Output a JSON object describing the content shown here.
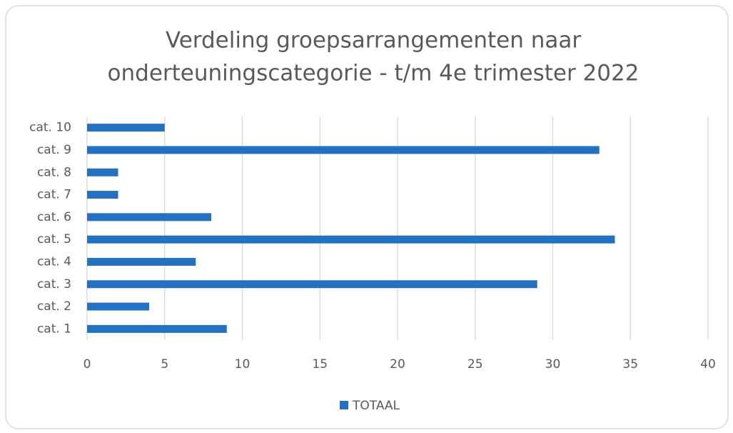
{
  "chart_data": {
    "type": "hbar",
    "title": [
      "Verdeling groepsarrangementen naar",
      "onderteuningscategorie - t/m 4e trimester 2022"
    ],
    "categories": [
      "cat. 1",
      "cat. 2",
      "cat. 3",
      "cat. 4",
      "cat. 5",
      "cat. 6",
      "cat. 7",
      "cat. 8",
      "cat. 9",
      "cat. 10"
    ],
    "series": [
      {
        "name": "TOTAAL",
        "color": "#2571c1",
        "values": [
          9,
          4,
          29,
          7,
          34,
          8,
          2,
          2,
          33,
          5
        ]
      }
    ],
    "xlim": [
      0,
      40
    ],
    "xticks": [
      0,
      5,
      10,
      15,
      20,
      25,
      30,
      35,
      40
    ],
    "grid": true,
    "legend": "bottom"
  }
}
